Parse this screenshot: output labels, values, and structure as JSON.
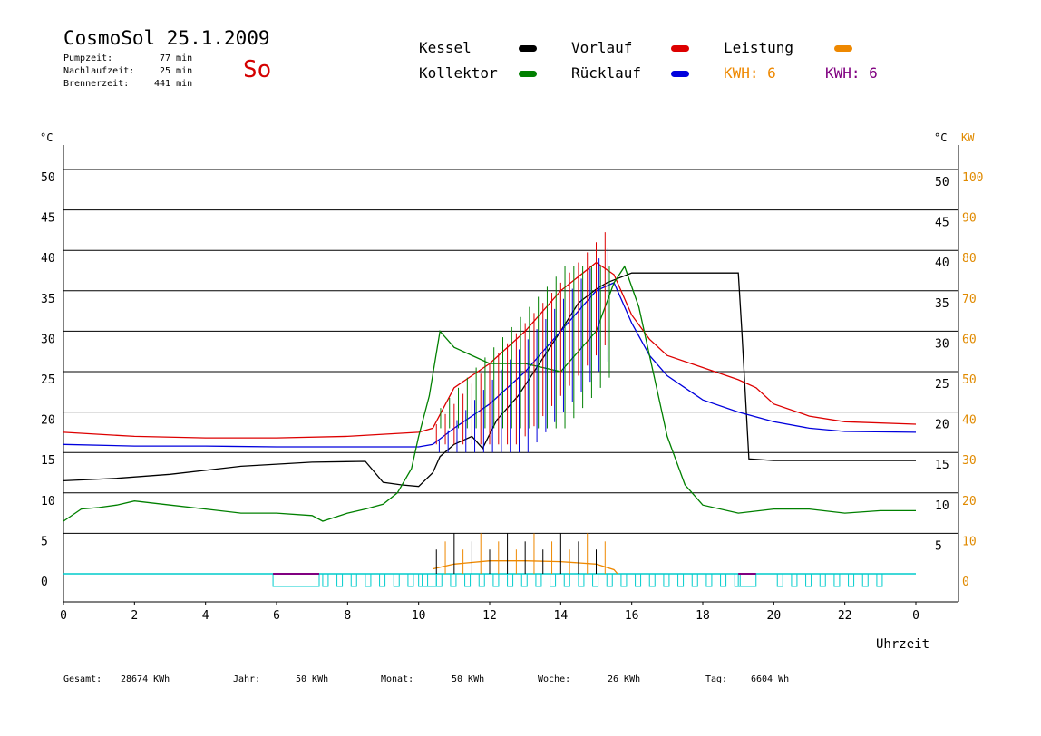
{
  "header": {
    "title": "CosmoSol 25.1.2009",
    "day": "So",
    "pumpzeit_label": "Pumpzeit:",
    "pumpzeit_value": "77 min",
    "nachlauf_label": "Nachlaufzeit:",
    "nachlauf_value": "25 min",
    "brenner_label": "Brennerzeit:",
    "brenner_value": "441 min"
  },
  "legend": {
    "kessel": "Kessel",
    "kollektor": "Kollektor",
    "vorlauf": "Vorlauf",
    "ruecklauf": "Rücklauf",
    "leistung": "Leistung",
    "kwh1": "KWH: 6",
    "kwh2": "KWH: 6"
  },
  "footer": {
    "gesamt_label": "Gesamt:",
    "gesamt_value": "28674 KWh",
    "jahr_label": "Jahr:",
    "jahr_value": "50 KWh",
    "monat_label": "Monat:",
    "monat_value": "50 KWh",
    "woche_label": "Woche:",
    "woche_value": "26 KWh",
    "tag_label": "Tag:",
    "tag_value": "6604 Wh"
  },
  "colors": {
    "kessel": "#000000",
    "kollektor": "#008000",
    "vorlauf": "#dd0000",
    "ruecklauf": "#0000dd",
    "leistung": "#ee8800",
    "kwh_purple": "#800080",
    "pump": "#00cccc",
    "axis_kw": "#e08a00"
  },
  "chart_data": {
    "type": "line",
    "xlabel": "Uhrzeit",
    "ylabel_left": "°C",
    "ylabel_right": "°C",
    "ylabel_right2": "KW",
    "x_ticks": [
      "0",
      "2",
      "4",
      "6",
      "8",
      "10",
      "12",
      "14",
      "16",
      "18",
      "20",
      "22",
      "0"
    ],
    "y_ticks_left": [
      "0",
      "5",
      "10",
      "15",
      "20",
      "25",
      "30",
      "35",
      "40",
      "45",
      "50"
    ],
    "y_ticks_right": [
      "5",
      "10",
      "15",
      "20",
      "25",
      "30",
      "35",
      "40",
      "45",
      "50"
    ],
    "y_ticks_kw": [
      "0",
      "10",
      "20",
      "30",
      "40",
      "50",
      "60",
      "70",
      "80",
      "90",
      "100"
    ],
    "xlim": [
      0,
      24
    ],
    "ylim": [
      0,
      50
    ],
    "series": [
      {
        "name": "Kessel",
        "color": "#000000",
        "x": [
          0,
          1.5,
          3,
          5,
          7,
          8.5,
          9,
          9.5,
          10,
          10.4,
          10.6,
          11,
          11.5,
          11.8,
          12.2,
          12.8,
          13.4,
          14,
          14.5,
          15,
          15.3,
          16,
          17,
          18,
          19,
          19.1,
          19.3,
          20,
          22,
          24
        ],
        "y": [
          11.5,
          11.8,
          12.3,
          13.3,
          13.8,
          13.9,
          11.3,
          11.0,
          10.8,
          12.5,
          14.5,
          16,
          17,
          15.5,
          19,
          22,
          26,
          30,
          33.5,
          35.2,
          36,
          37.2,
          37.2,
          37.2,
          37.2,
          30,
          14.2,
          14,
          14,
          14
        ]
      },
      {
        "name": "Vorlauf",
        "color": "#dd0000",
        "x": [
          0,
          2,
          4,
          6,
          8,
          10,
          10.4,
          11,
          12,
          13,
          14,
          15,
          15.5,
          16,
          16.5,
          17,
          18,
          19,
          19.5,
          20,
          21,
          22,
          24
        ],
        "y": [
          17.5,
          17.0,
          16.8,
          16.8,
          17.0,
          17.5,
          18.0,
          23,
          26,
          30,
          35,
          38.5,
          37,
          32,
          29,
          27,
          25.5,
          24,
          23,
          21,
          19.5,
          18.8,
          18.5
        ]
      },
      {
        "name": "Rücklauf",
        "color": "#0000dd",
        "x": [
          0,
          2,
          4,
          6,
          8,
          10,
          10.4,
          11,
          12,
          13,
          14,
          15,
          15.5,
          16,
          16.5,
          17,
          18,
          19,
          20,
          21,
          22,
          24
        ],
        "y": [
          16.0,
          15.8,
          15.8,
          15.7,
          15.7,
          15.7,
          16,
          18,
          21,
          25,
          30,
          35,
          36,
          31,
          27,
          24.5,
          21.5,
          20,
          18.8,
          18,
          17.6,
          17.5
        ]
      },
      {
        "name": "Kollektor",
        "color": "#008000",
        "x": [
          0,
          0.5,
          1,
          1.5,
          2,
          3,
          4,
          5,
          6,
          7,
          7.3,
          8,
          8.5,
          9,
          9.4,
          9.8,
          10,
          10.3,
          10.6,
          11,
          12,
          13,
          14,
          15,
          15.5,
          15.8,
          16.2,
          16.6,
          17,
          17.5,
          18,
          19,
          20,
          21,
          22,
          23,
          24
        ],
        "y": [
          6.5,
          8.0,
          8.2,
          8.5,
          9.0,
          8.5,
          8.0,
          7.5,
          7.5,
          7.2,
          6.5,
          7.5,
          8.0,
          8.6,
          10,
          13,
          17,
          22,
          30,
          28,
          26,
          26,
          25,
          30,
          36,
          38,
          33,
          25,
          17,
          11,
          8.5,
          7.5,
          8.0,
          8.0,
          7.5,
          7.8,
          7.8
        ]
      },
      {
        "name": "Leistung",
        "color": "#ee8800",
        "x": [
          10.4,
          11,
          12,
          13,
          14,
          15,
          15.5,
          15.6
        ],
        "y": [
          0.6,
          1.2,
          1.6,
          1.6,
          1.5,
          1.2,
          0.5,
          0
        ]
      }
    ]
  }
}
